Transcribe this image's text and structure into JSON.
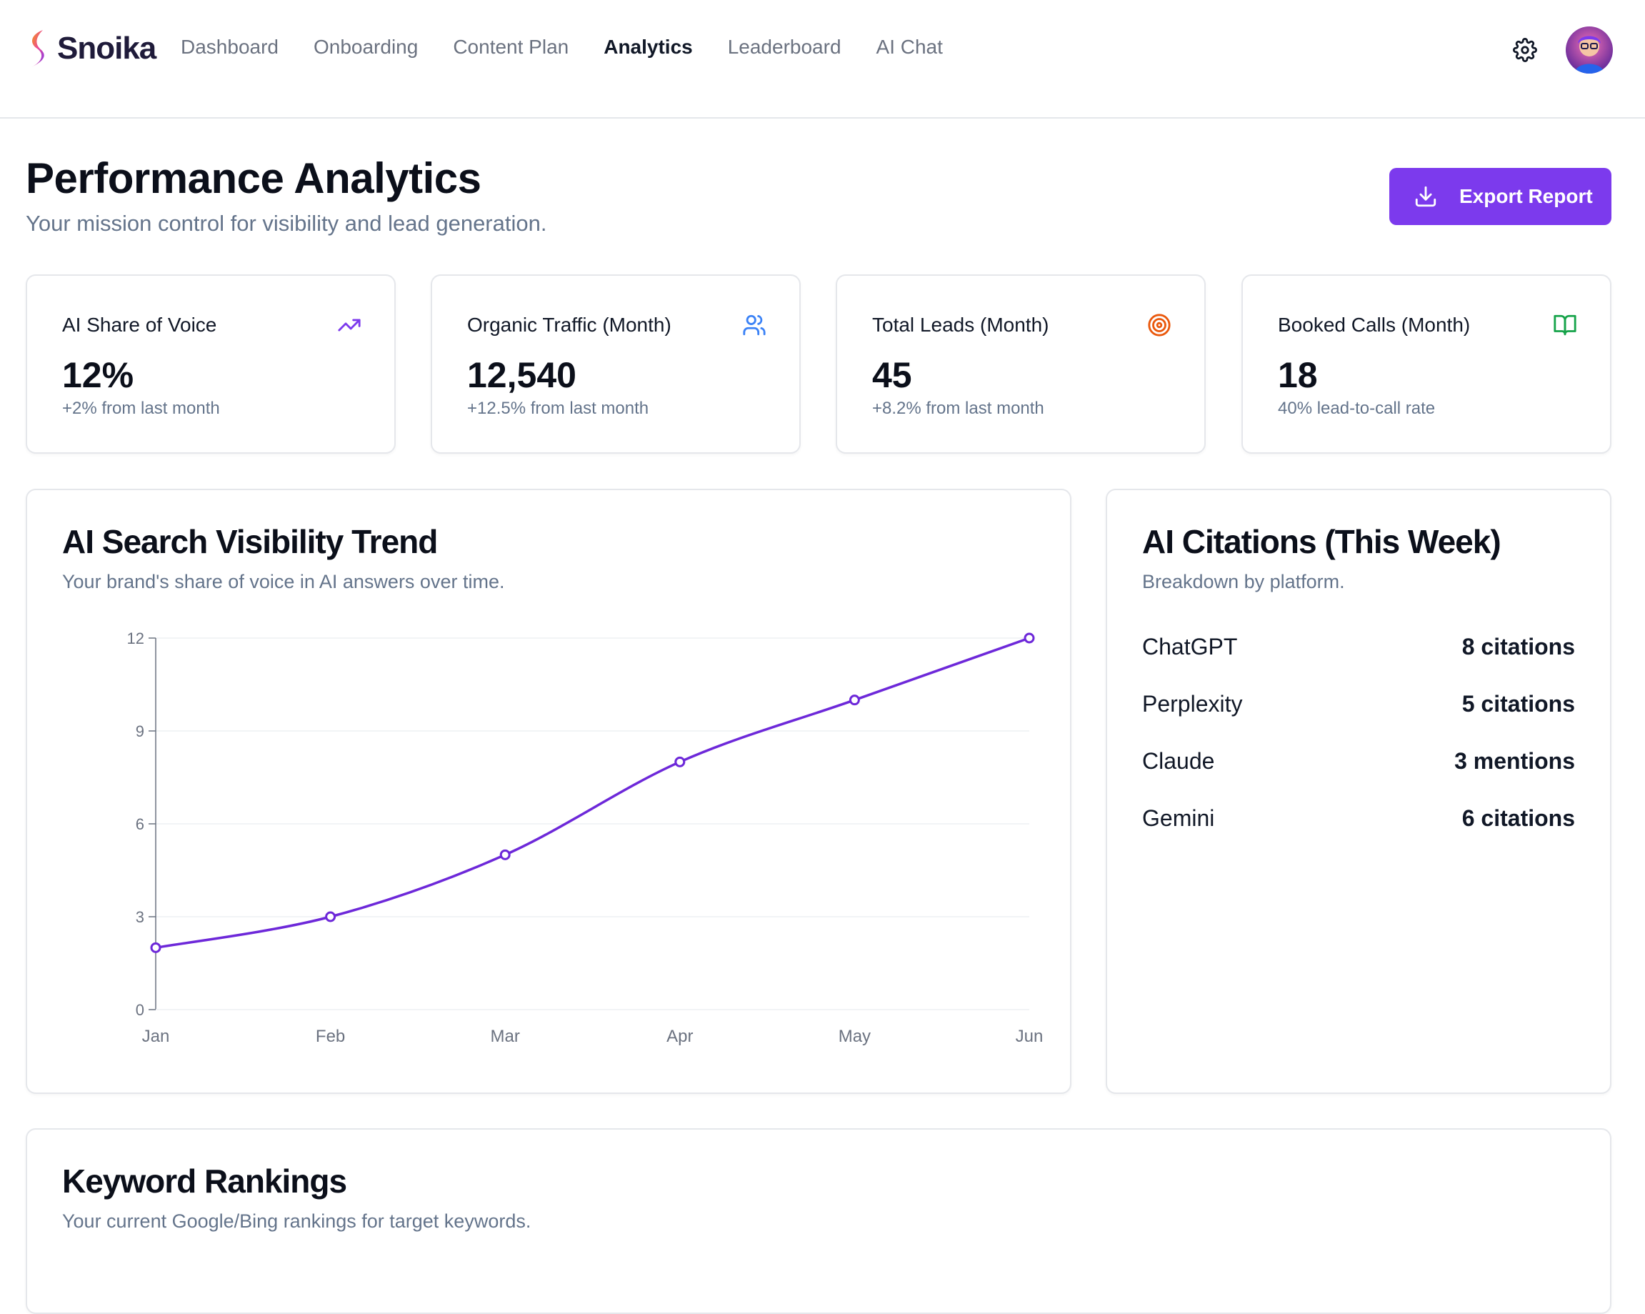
{
  "brand": {
    "name": "Snoika"
  },
  "nav": [
    {
      "label": "Dashboard",
      "active": false
    },
    {
      "label": "Onboarding",
      "active": false
    },
    {
      "label": "Content Plan",
      "active": false
    },
    {
      "label": "Analytics",
      "active": true
    },
    {
      "label": "Leaderboard",
      "active": false
    },
    {
      "label": "AI Chat",
      "active": false
    }
  ],
  "page": {
    "title": "Performance Analytics",
    "subtitle": "Your mission control for visibility and lead generation.",
    "export_label": "Export Report"
  },
  "stats": [
    {
      "label": "AI Share of Voice",
      "value": "12%",
      "note": "+2% from last month",
      "icon": "trending-up-icon",
      "icon_color": "#7c3aed"
    },
    {
      "label": "Organic Traffic (Month)",
      "value": "12,540",
      "note": "+12.5% from last month",
      "icon": "users-icon",
      "icon_color": "#3b82f6"
    },
    {
      "label": "Total Leads (Month)",
      "value": "45",
      "note": "+8.2% from last month",
      "icon": "target-icon",
      "icon_color": "#ea580c"
    },
    {
      "label": "Booked Calls (Month)",
      "value": "18",
      "note": "40% lead-to-call rate",
      "icon": "book-open-icon",
      "icon_color": "#16a34a"
    }
  ],
  "trend": {
    "title": "AI Search Visibility Trend",
    "subtitle": "Your brand's share of voice in AI answers over time."
  },
  "chart_data": {
    "type": "line",
    "title": "AI Search Visibility Trend",
    "categories": [
      "Jan",
      "Feb",
      "Mar",
      "Apr",
      "May",
      "Jun"
    ],
    "series": [
      {
        "values": [
          2,
          3,
          5,
          8,
          10,
          12
        ],
        "color": "#6d28d9"
      }
    ],
    "yticks": [
      0,
      3,
      6,
      9,
      12
    ],
    "ylim": [
      0,
      12
    ],
    "xlabel": "",
    "ylabel": "",
    "grid": true
  },
  "citations": {
    "title": "AI Citations (This Week)",
    "subtitle": "Breakdown by platform.",
    "rows": [
      {
        "platform": "ChatGPT",
        "value": "8 citations"
      },
      {
        "platform": "Perplexity",
        "value": "5 citations"
      },
      {
        "platform": "Claude",
        "value": "3 mentions"
      },
      {
        "platform": "Gemini",
        "value": "6 citations"
      }
    ]
  },
  "keywords": {
    "title": "Keyword Rankings",
    "subtitle": "Your current Google/Bing rankings for target keywords."
  },
  "colors": {
    "accent": "#7c3aed",
    "line": "#6d28d9"
  }
}
